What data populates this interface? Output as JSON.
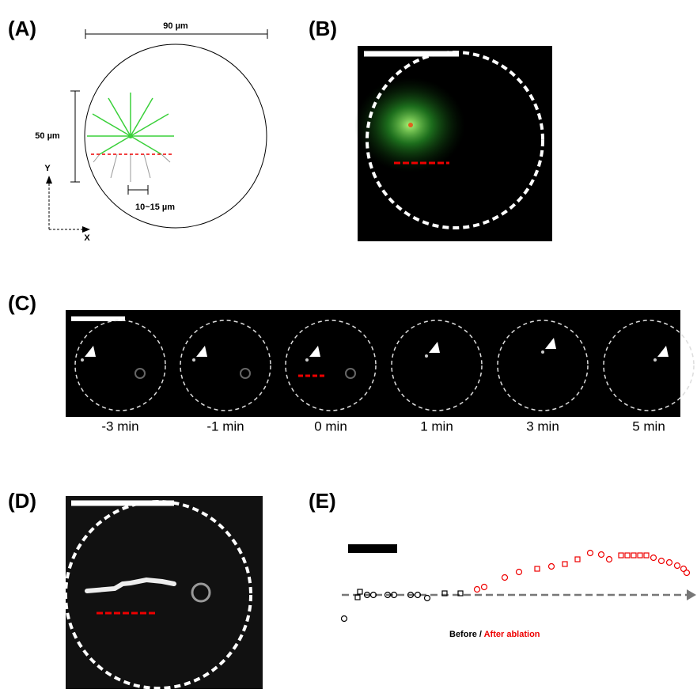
{
  "panels": {
    "a": {
      "label": "(A)",
      "width": "90 µm",
      "height": "50 µm",
      "gap": "10~15 µm",
      "y_axis": "Y",
      "x_axis": "X"
    },
    "b": {
      "label": "(B)"
    },
    "c": {
      "label": "(C)",
      "times": [
        "-3 min",
        "-1 min",
        "0 min",
        "1 min",
        "3 min",
        "5 min"
      ]
    },
    "d": {
      "label": "(D)"
    },
    "e": {
      "label": "(E)",
      "legend_before": "Before / ",
      "legend_after": "After ablation"
    }
  }
}
